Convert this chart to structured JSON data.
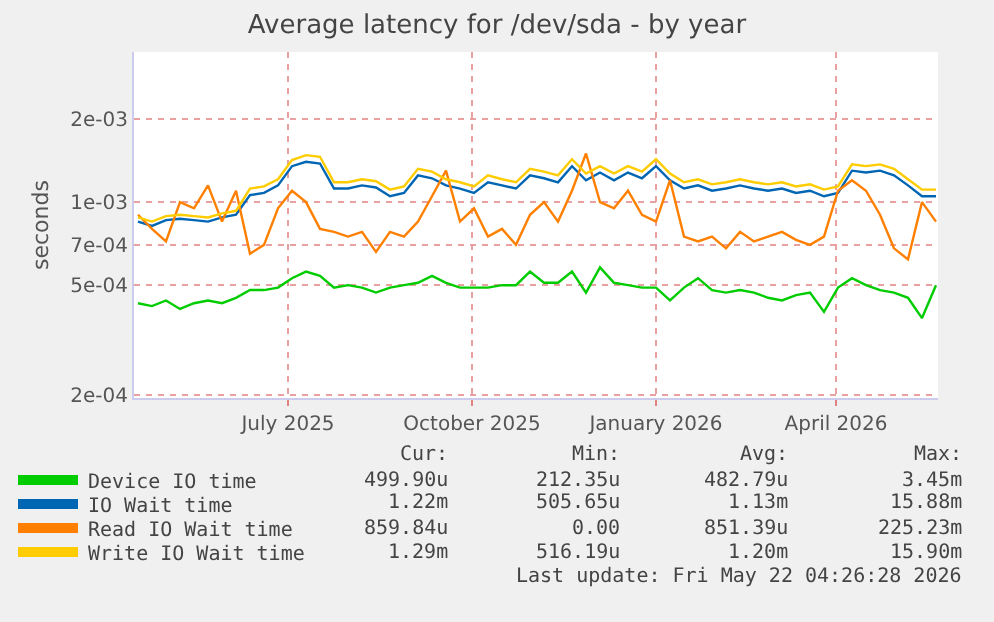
{
  "chart_data": {
    "type": "line",
    "title": "Average latency for /dev/sda - by year",
    "ylabel": "seconds",
    "x": [
      "2025-04-17",
      "2025-04-24",
      "2025-05-01",
      "2025-05-08",
      "2025-05-15",
      "2025-05-22",
      "2025-05-29",
      "2025-06-05",
      "2025-06-12",
      "2025-06-19",
      "2025-06-26",
      "2025-07-03",
      "2025-07-10",
      "2025-07-17",
      "2025-07-24",
      "2025-07-31",
      "2025-08-07",
      "2025-08-14",
      "2025-08-21",
      "2025-08-28",
      "2025-09-04",
      "2025-09-11",
      "2025-09-18",
      "2025-09-25",
      "2025-10-02",
      "2025-10-09",
      "2025-10-16",
      "2025-10-23",
      "2025-10-30",
      "2025-11-06",
      "2025-11-13",
      "2025-11-20",
      "2025-11-27",
      "2025-12-04",
      "2025-12-11",
      "2025-12-18",
      "2025-12-25",
      "2026-01-01",
      "2026-01-08",
      "2026-01-15",
      "2026-01-22",
      "2026-01-29",
      "2026-02-05",
      "2026-02-12",
      "2026-02-19",
      "2026-02-26",
      "2026-03-05",
      "2026-03-12",
      "2026-03-19",
      "2026-03-26",
      "2026-04-02",
      "2026-04-09",
      "2026-04-16",
      "2026-04-23",
      "2026-04-30",
      "2026-05-07",
      "2026-05-14",
      "2026-05-21"
    ],
    "series": [
      {
        "name": "Device IO time",
        "color": "#00cc00",
        "values": [
          0.00043,
          0.00042,
          0.00044,
          0.00041,
          0.00043,
          0.00044,
          0.00043,
          0.00045,
          0.00048,
          0.00048,
          0.00049,
          0.00053,
          0.00056,
          0.00054,
          0.00049,
          0.0005,
          0.00049,
          0.00047,
          0.00049,
          0.0005,
          0.00051,
          0.00054,
          0.00051,
          0.00049,
          0.00049,
          0.00049,
          0.0005,
          0.0005,
          0.00056,
          0.00051,
          0.00051,
          0.00056,
          0.00047,
          0.00058,
          0.00051,
          0.0005,
          0.00049,
          0.00049,
          0.00044,
          0.00049,
          0.00053,
          0.00048,
          0.00047,
          0.00048,
          0.00047,
          0.00045,
          0.00044,
          0.00046,
          0.00047,
          0.0004,
          0.00049,
          0.00053,
          0.0005,
          0.00048,
          0.00047,
          0.00045,
          0.00038,
          0.0005
        ]
      },
      {
        "name": "IO Wait time",
        "color": "#0066b3",
        "values": [
          0.00085,
          0.00082,
          0.00086,
          0.00087,
          0.00086,
          0.00085,
          0.00088,
          0.0009,
          0.00106,
          0.00108,
          0.00115,
          0.00135,
          0.0014,
          0.00138,
          0.00112,
          0.00112,
          0.00115,
          0.00113,
          0.00105,
          0.00108,
          0.00125,
          0.00122,
          0.00115,
          0.00112,
          0.00108,
          0.00118,
          0.00115,
          0.00112,
          0.00125,
          0.00122,
          0.00118,
          0.00135,
          0.0012,
          0.00128,
          0.0012,
          0.00128,
          0.00122,
          0.00135,
          0.0012,
          0.00112,
          0.00115,
          0.0011,
          0.00112,
          0.00115,
          0.00112,
          0.0011,
          0.00112,
          0.00108,
          0.0011,
          0.00105,
          0.00108,
          0.0013,
          0.00128,
          0.0013,
          0.00125,
          0.00115,
          0.00105,
          0.00105
        ]
      },
      {
        "name": "Read IO Wait time",
        "color": "#ff8000",
        "values": [
          0.0009,
          0.0008,
          0.00072,
          0.001,
          0.00095,
          0.00115,
          0.00085,
          0.0011,
          0.00065,
          0.0007,
          0.00095,
          0.0011,
          0.001,
          0.0008,
          0.00078,
          0.00075,
          0.00078,
          0.00066,
          0.00078,
          0.00075,
          0.00085,
          0.00105,
          0.0013,
          0.00085,
          0.00095,
          0.00075,
          0.0008,
          0.0007,
          0.0009,
          0.001,
          0.00085,
          0.0011,
          0.0015,
          0.001,
          0.00095,
          0.0011,
          0.0009,
          0.00085,
          0.0012,
          0.00075,
          0.00072,
          0.00075,
          0.00068,
          0.00078,
          0.00072,
          0.00075,
          0.00078,
          0.00073,
          0.0007,
          0.00075,
          0.0011,
          0.0012,
          0.0011,
          0.0009,
          0.00068,
          0.00062,
          0.001,
          0.00085
        ]
      },
      {
        "name": "Write IO Wait time",
        "color": "#ffcc00",
        "values": [
          0.00088,
          0.00085,
          0.00089,
          0.0009,
          0.00089,
          0.00088,
          0.00091,
          0.00093,
          0.00112,
          0.00114,
          0.00121,
          0.00142,
          0.00148,
          0.00146,
          0.00118,
          0.00118,
          0.00121,
          0.00119,
          0.00111,
          0.00114,
          0.00132,
          0.00129,
          0.00121,
          0.00118,
          0.00114,
          0.00125,
          0.00121,
          0.00118,
          0.00132,
          0.00129,
          0.00125,
          0.00143,
          0.00127,
          0.00135,
          0.00127,
          0.00135,
          0.00129,
          0.00143,
          0.00127,
          0.00118,
          0.00121,
          0.00116,
          0.00118,
          0.00121,
          0.00118,
          0.00116,
          0.00118,
          0.00114,
          0.00116,
          0.00111,
          0.00114,
          0.00137,
          0.00135,
          0.00137,
          0.00132,
          0.00121,
          0.00111,
          0.00111
        ]
      }
    ],
    "xlim": [
      "2025-04-15",
      "2026-05-22"
    ],
    "xticks": [
      {
        "value": "2025-07-01",
        "label": "July 2025"
      },
      {
        "value": "2025-10-01",
        "label": "October 2025"
      },
      {
        "value": "2026-01-01",
        "label": "January 2026"
      },
      {
        "value": "2026-04-01",
        "label": "April 2026"
      }
    ],
    "ylim": [
      0.000195,
      0.0035
    ],
    "yticks": [
      {
        "value": 0.0002,
        "label": "2e-04"
      },
      {
        "value": 0.0005,
        "label": "5e-04"
      },
      {
        "value": 0.0007,
        "label": "7e-04"
      },
      {
        "value": 0.001,
        "label": "1e-03"
      },
      {
        "value": 0.002,
        "label": "2e-03"
      }
    ],
    "log": "y",
    "grid": true,
    "legend": "bottom left",
    "marker": "none",
    "line_style": "solid",
    "annotations": [
      "Cur:",
      "Min:",
      "Avg:",
      "Max:",
      "499.90u",
      "212.35u",
      "482.79u",
      "3.45m",
      "1.22m",
      "505.65u",
      "1.13m",
      "15.88m",
      "859.84u",
      "0.00",
      "851.39u",
      "225.23m",
      "1.29m",
      "516.19u",
      "1.20m",
      "15.90m",
      "Last update: Fri May 22 04:26:28 2026"
    ]
  }
}
